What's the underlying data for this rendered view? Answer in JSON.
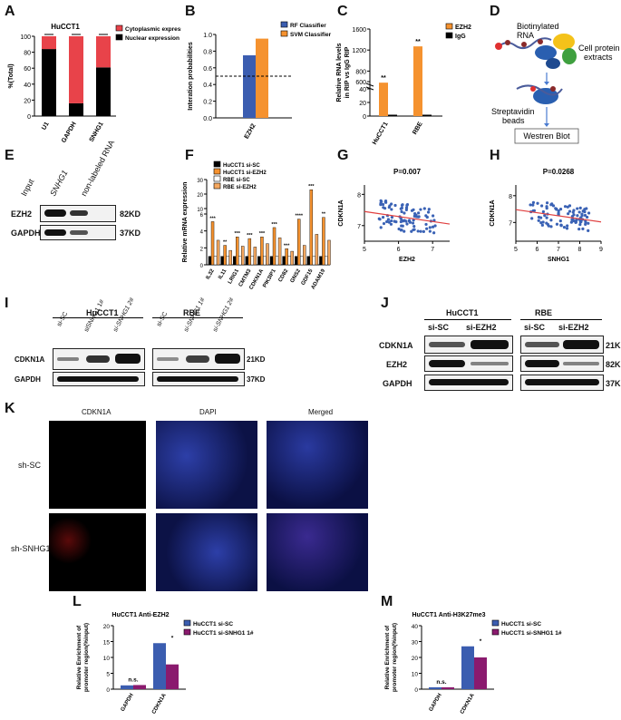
{
  "panel_labels": {
    "A": "A",
    "B": "B",
    "C": "C",
    "D": "D",
    "E": "E",
    "F": "F",
    "G": "G",
    "H": "H",
    "I": "I",
    "J": "J",
    "K": "K",
    "L": "L",
    "M": "M"
  },
  "chart_data": [
    {
      "panel": "A",
      "type": "bar",
      "title": "HuCCT1",
      "ylabel": "%(Total)",
      "categories": [
        "U1",
        "GAPDH",
        "SNHG1"
      ],
      "ylim": [
        0,
        100
      ],
      "yticks": [
        "0",
        "20",
        "40",
        "60",
        "80",
        "100"
      ],
      "legend": "top-right",
      "series": [
        {
          "name": "Cytoplasmic expression",
          "color": "#e8434a",
          "values": [
            16,
            84,
            39
          ]
        },
        {
          "name": "Nuclear expression",
          "color": "#000000",
          "values": [
            84,
            16,
            61
          ]
        }
      ],
      "stacked": true
    },
    {
      "panel": "B",
      "type": "bar",
      "ylabel": "Interation probabilities",
      "categories": [
        "EZH2"
      ],
      "ylim": [
        0,
        1.0
      ],
      "yticks": [
        "0.0",
        "0.2",
        "0.4",
        "0.6",
        "0.8",
        "1.0"
      ],
      "threshold": 0.5,
      "legend": "top-right",
      "series": [
        {
          "name": "RF Classifier",
          "color": "#3b5db0",
          "values": [
            0.75
          ]
        },
        {
          "name": "SVM Classifier",
          "color": "#f5922f",
          "values": [
            0.95
          ]
        }
      ]
    },
    {
      "panel": "C",
      "type": "bar",
      "ylabel_line1": "Relative RNA levels",
      "ylabel_line2": "in RIP vs IgG RIP",
      "categories": [
        "HuCCT1",
        "RBE"
      ],
      "yticks": [
        "0",
        "20",
        "40",
        "600",
        "800",
        "1200",
        "1600"
      ],
      "legend": "top-right",
      "series": [
        {
          "name": "EZH2",
          "color": "#f5922f",
          "values": [
            580,
            1270
          ]
        },
        {
          "name": "IgG",
          "color": "#000000",
          "values": [
            1,
            1
          ]
        }
      ],
      "annotations": [
        "**",
        "**"
      ]
    },
    {
      "panel": "F",
      "type": "bar",
      "ylabel": "Relative mRNA expression",
      "categories": [
        "IL32",
        "IL11",
        "LRIG1",
        "CMTM3",
        "CDKN1A",
        "PIK3IP1",
        "CD82",
        "GNS2",
        "GDF15",
        "ADAM19"
      ],
      "yticks": [
        "0",
        "2",
        "4",
        "6",
        "10",
        "20",
        "30"
      ],
      "legend": "top-left",
      "series": [
        {
          "name": "HuCCT1 si-SC",
          "color": "#000000",
          "values": [
            1,
            1,
            1,
            1,
            1,
            1,
            1,
            1,
            1,
            1
          ]
        },
        {
          "name": "HuCCT1 si-EZH2",
          "color": "#f5922f",
          "values": [
            5.1,
            2.3,
            3.3,
            3.1,
            3.3,
            4.4,
            1.9,
            5.4,
            23,
            5.6
          ]
        },
        {
          "name": "RBE si-SC",
          "color": "#ffffff",
          "values": [
            1,
            1,
            1,
            1,
            1,
            1,
            1,
            1,
            1,
            1
          ]
        },
        {
          "name": "RBE si-EZH2",
          "color": "#f5a860",
          "values": [
            2.9,
            1.7,
            2.2,
            2.1,
            2.5,
            3.2,
            1.6,
            2.3,
            3.6,
            2.9
          ]
        }
      ],
      "annotations": [
        "***",
        "**",
        "***",
        "***",
        "***",
        "***",
        "***",
        "****",
        "***",
        "**"
      ]
    },
    {
      "panel": "G",
      "type": "scatter",
      "title": "P=0.007",
      "xlabel": "EZH2",
      "ylabel": "CDKN1A",
      "xlim": [
        5,
        7.5
      ],
      "ylim": [
        6.5,
        8.3
      ],
      "xticks": [
        "5",
        "6",
        "7"
      ],
      "yticks": [
        "7",
        "8"
      ],
      "regression": {
        "y_at_xmin": 7.45,
        "y_at_xmax": 7.05
      },
      "point_color": "#3a62b5",
      "line_color": "#e04040"
    },
    {
      "panel": "H",
      "type": "scatter",
      "title": "P=0.0268",
      "xlabel": "SNHG1",
      "ylabel": "CDKN1A",
      "xlim": [
        5,
        9
      ],
      "ylim": [
        6.3,
        8.4
      ],
      "xticks": [
        "5",
        "6",
        "7",
        "8",
        "9"
      ],
      "yticks": [
        "7",
        "8"
      ],
      "regression": {
        "y_at_xmin": 7.48,
        "y_at_xmax": 7.02
      },
      "point_color": "#3a62b5",
      "line_color": "#e04040"
    },
    {
      "panel": "L",
      "type": "bar",
      "title": "HuCCT1  Anti-EZH2",
      "ylabel_line1": "Relative Enrichment of",
      "ylabel_line2": "promoter region(%input)",
      "categories": [
        "GAPDH",
        "CDKN1A"
      ],
      "ylim": [
        0,
        20
      ],
      "yticks": [
        "0",
        "5",
        "10",
        "15",
        "20"
      ],
      "legend": "top-right",
      "series": [
        {
          "name": "HuCCT1 si-SC",
          "color": "#3b5db0",
          "values": [
            1.2,
            14.5
          ]
        },
        {
          "name": "HuCCT1 si-SNHG1 1#",
          "color": "#8a1a6e",
          "values": [
            1.3,
            7.8
          ]
        }
      ],
      "annotations": [
        "n.s.",
        "*"
      ]
    },
    {
      "panel": "M",
      "type": "bar",
      "title": "HuCCT1  Anti-H3K27me3",
      "ylabel_line1": "Relative Enrichment of",
      "ylabel_line2": "promoter region(%input)",
      "categories": [
        "GAPDH",
        "CDKN1A"
      ],
      "ylim": [
        0,
        40
      ],
      "yticks": [
        "0",
        "10",
        "20",
        "30",
        "40"
      ],
      "legend": "top-right",
      "series": [
        {
          "name": "HuCCT1 si-SC",
          "color": "#3b5db0",
          "values": [
            1.2,
            27
          ]
        },
        {
          "name": "HuCCT1 si-SNHG1 1#",
          "color": "#8a1a6e",
          "values": [
            1.2,
            20
          ]
        }
      ],
      "annotations": [
        "n.s.",
        "*"
      ]
    }
  ],
  "diagram_D": {
    "label_rna_1": "Biotinylated",
    "label_rna_2": "RNA",
    "label_cell_1": "Cell protein",
    "label_cell_2": "extracts",
    "label_beads_1": "Streptavidin",
    "label_beads_2": "beads",
    "label_blot": "Westren Blot"
  },
  "blot_E": {
    "lanes": [
      "Input",
      "SNHG1",
      "non-labeled RNA"
    ],
    "rows": [
      {
        "name": "EZH2",
        "size": "82KD"
      },
      {
        "name": "GAPDH",
        "size": "37KD"
      }
    ]
  },
  "blot_I": {
    "groups": [
      "HuCCT1",
      "RBE"
    ],
    "lanes": [
      "si-SC",
      "siSNHG1 1#",
      "si-SNHG1 2#",
      "si-SC",
      "si-SNHG1 1#",
      "si-SNHG1 2#"
    ],
    "rows": [
      {
        "name": "CDKN1A",
        "size": "21KD"
      },
      {
        "name": "GAPDH",
        "size": "37KD"
      }
    ]
  },
  "blot_J": {
    "groups": [
      "HuCCT1",
      "RBE"
    ],
    "lanes": [
      "si-SC",
      "si-EZH2",
      "si-SC",
      "si-EZH2"
    ],
    "rows": [
      {
        "name": "CDKN1A",
        "size": "21KD"
      },
      {
        "name": "EZH2",
        "size": "82KD"
      },
      {
        "name": "GAPDH",
        "size": "37KD"
      }
    ]
  },
  "micro_K": {
    "cols": [
      "CDKN1A",
      "DAPI",
      "Merged"
    ],
    "rows": [
      "sh-SC",
      "sh-SNHG1"
    ]
  }
}
